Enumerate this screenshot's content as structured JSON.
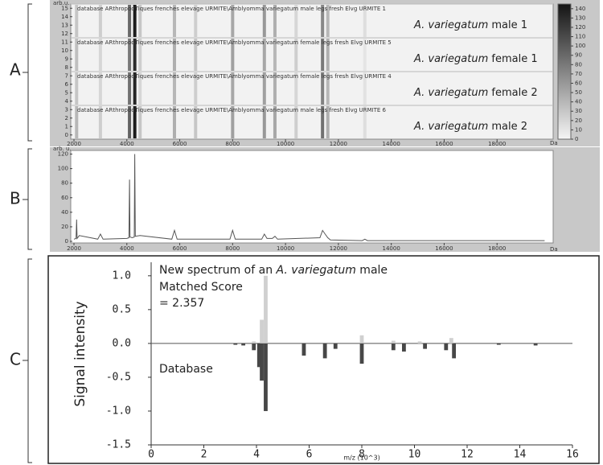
{
  "panels": [
    "A",
    "B",
    "C"
  ],
  "chart_data": [
    {
      "type": "gel",
      "x_unit": "Da",
      "y_unit": "arb.u.",
      "xlim": [
        2000,
        20000
      ],
      "xticks": [
        2000,
        4000,
        6000,
        8000,
        10000,
        12000,
        14000,
        16000,
        18000
      ],
      "ylim": [
        -0.5,
        15.5
      ],
      "yticks": [
        0,
        1,
        2,
        3,
        4,
        5,
        6,
        7,
        8,
        9,
        10,
        11,
        12,
        13,
        14,
        15
      ],
      "zlim": [
        0,
        145
      ],
      "zticks": [
        0,
        10,
        20,
        30,
        40,
        50,
        60,
        70,
        80,
        90,
        100,
        110,
        120,
        130,
        140
      ],
      "x": [
        2100,
        3000,
        4100,
        4300,
        4500,
        5800,
        6600,
        8000,
        9200,
        9600,
        10400,
        11400,
        11600,
        13000
      ],
      "series": [
        {
          "species": "A. variegatum",
          "label": "male 1",
          "header": "database ARthropodTiques frenches elevage URMITE\\Amblyomma variegatum male legs fresh Elvg URMITE 1",
          "values": [
            30,
            25,
            90,
            140,
            30,
            40,
            25,
            50,
            60,
            45,
            20,
            70,
            40,
            15
          ]
        },
        {
          "species": "A. variegatum",
          "label": "female 1",
          "header": "database ARthropodTiques frenches elevage URMITE\\Amblyomma variegatum female legs fresh Elvg URMITE 5",
          "values": [
            35,
            20,
            80,
            130,
            25,
            45,
            30,
            55,
            50,
            40,
            25,
            80,
            45,
            10
          ]
        },
        {
          "species": "A. variegatum",
          "label": "female 2",
          "header": "database ARthropodTiques frenches elevage URMITE\\Amblyomma variegatum female legs fresh Elvg URMITE 4",
          "values": [
            30,
            20,
            85,
            135,
            20,
            40,
            25,
            50,
            55,
            45,
            20,
            75,
            40,
            12
          ]
        },
        {
          "species": "A. variegatum",
          "label": "male 2",
          "header": "database ARthropodTiques frenches elevage URMITE\\Amblyomma variegatum male legs fresh Elvg URMITE 6",
          "values": [
            40,
            25,
            95,
            140,
            30,
            45,
            30,
            55,
            60,
            50,
            25,
            85,
            45,
            15
          ]
        }
      ]
    },
    {
      "type": "line",
      "x_unit": "Da",
      "y_unit": "arb. u.",
      "color": "#555555",
      "xlim": [
        2000,
        20000
      ],
      "xticks": [
        2000,
        4000,
        6000,
        8000,
        10000,
        12000,
        14000,
        16000,
        18000
      ],
      "ylim": [
        0,
        125
      ],
      "yticks": [
        0,
        20,
        40,
        60,
        80,
        100,
        120
      ],
      "x": [
        2000,
        2080,
        2100,
        2120,
        2200,
        2900,
        3000,
        3100,
        4000,
        4080,
        4100,
        4120,
        4200,
        4280,
        4300,
        4320,
        4500,
        5700,
        5800,
        5900,
        7900,
        8000,
        8100,
        9100,
        9200,
        9300,
        9500,
        9600,
        9700,
        11300,
        11400,
        11500,
        11600,
        11700,
        12900,
        13000,
        13100,
        19800
      ],
      "values": [
        3,
        4,
        30,
        4,
        8,
        3,
        10,
        3,
        4,
        5,
        85,
        6,
        5,
        6,
        120,
        7,
        8,
        3,
        15,
        3,
        3,
        15,
        3,
        3,
        10,
        4,
        4,
        7,
        3,
        5,
        15,
        10,
        5,
        2,
        1,
        3,
        1,
        1
      ]
    },
    {
      "type": "mirror-bar",
      "xlabel": "m/z (10^3)",
      "ylabel": "Signal intensity",
      "xlim": [
        0,
        16
      ],
      "xticks": [
        0,
        2,
        4,
        6,
        8,
        10,
        12,
        14,
        16
      ],
      "ylim": [
        -1.5,
        1.2
      ],
      "yticks": [
        {
          "value": 1,
          "label": "1.0"
        },
        {
          "value": 0.5,
          "label": "0.5"
        },
        {
          "value": 0,
          "label": "0.0"
        },
        {
          "value": -0.5,
          "label": "-0.5"
        },
        {
          "value": -1,
          "label": "-1.0"
        },
        {
          "value": -1.5,
          "label": "-1.5"
        }
      ],
      "annotation_top": [
        "New spectrum of an ",
        "A. variegatum",
        " male"
      ],
      "score_label": "Matched Score",
      "score": "= 2.357",
      "annotation_bottom": "Database",
      "series": [
        {
          "color": "#d0d0d0",
          "x": [
            3.9,
            4.2,
            4.35,
            8.0,
            9.2,
            10.2,
            11.4
          ],
          "values": [
            0.03,
            0.35,
            1.0,
            0.12,
            0.04,
            0.03,
            0.08
          ]
        },
        {
          "color": "#474747",
          "x": [
            3.2,
            3.5,
            3.9,
            4.1,
            4.2,
            4.35,
            5.8,
            6.6,
            7.0,
            8.0,
            9.2,
            9.6,
            10.4,
            11.2,
            11.5,
            13.2,
            14.6
          ],
          "values": [
            -0.02,
            -0.03,
            -0.1,
            -0.35,
            -0.55,
            -1.0,
            -0.18,
            -0.22,
            -0.08,
            -0.3,
            -0.1,
            -0.12,
            -0.08,
            -0.1,
            -0.22,
            -0.02,
            -0.03
          ]
        }
      ]
    }
  ]
}
